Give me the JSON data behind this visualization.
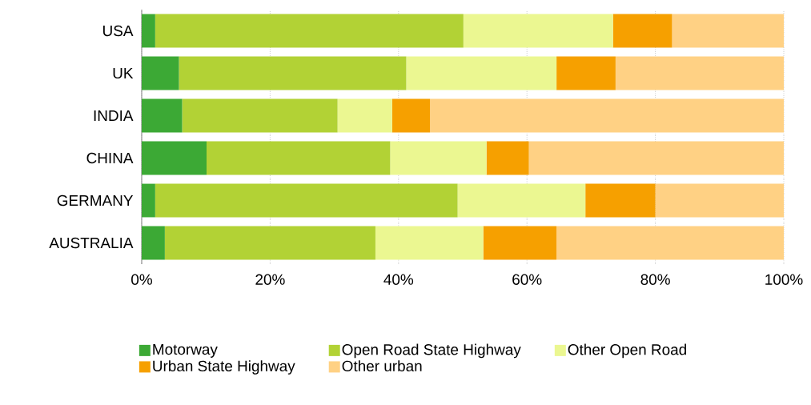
{
  "chart_data": {
    "type": "bar",
    "orientation": "horizontal",
    "stacked": true,
    "categories": [
      "USA",
      "UK",
      "INDIA",
      "CHINA",
      "GERMANY",
      "AUSTRALIA"
    ],
    "series": [
      {
        "name": "Motorway",
        "color": "#3ca935",
        "values": [
          2.1,
          5.8,
          6.3,
          10.1,
          2.1,
          3.6
        ]
      },
      {
        "name": "Open Road State Highway",
        "color": "#b2d235",
        "values": [
          48.0,
          35.4,
          24.2,
          28.6,
          47.1,
          32.8
        ]
      },
      {
        "name": "Other Open Road",
        "color": "#ebf791",
        "values": [
          23.3,
          23.4,
          8.5,
          15.0,
          19.9,
          16.8
        ]
      },
      {
        "name": "Urban State Highway",
        "color": "#f6a000",
        "values": [
          9.2,
          9.2,
          5.9,
          6.6,
          10.9,
          11.4
        ]
      },
      {
        "name": "Other urban",
        "color": "#ffd184",
        "values": [
          17.4,
          26.2,
          55.1,
          39.7,
          20.0,
          35.4
        ]
      }
    ],
    "xlim": [
      0,
      100
    ],
    "xticks": [
      {
        "value": 0,
        "label": "0%"
      },
      {
        "value": 20,
        "label": "20%"
      },
      {
        "value": 40,
        "label": "40%"
      },
      {
        "value": 60,
        "label": "60%"
      },
      {
        "value": 80,
        "label": "80%"
      },
      {
        "value": 100,
        "label": "100%"
      }
    ],
    "grid": "x",
    "legend": "bottom"
  }
}
